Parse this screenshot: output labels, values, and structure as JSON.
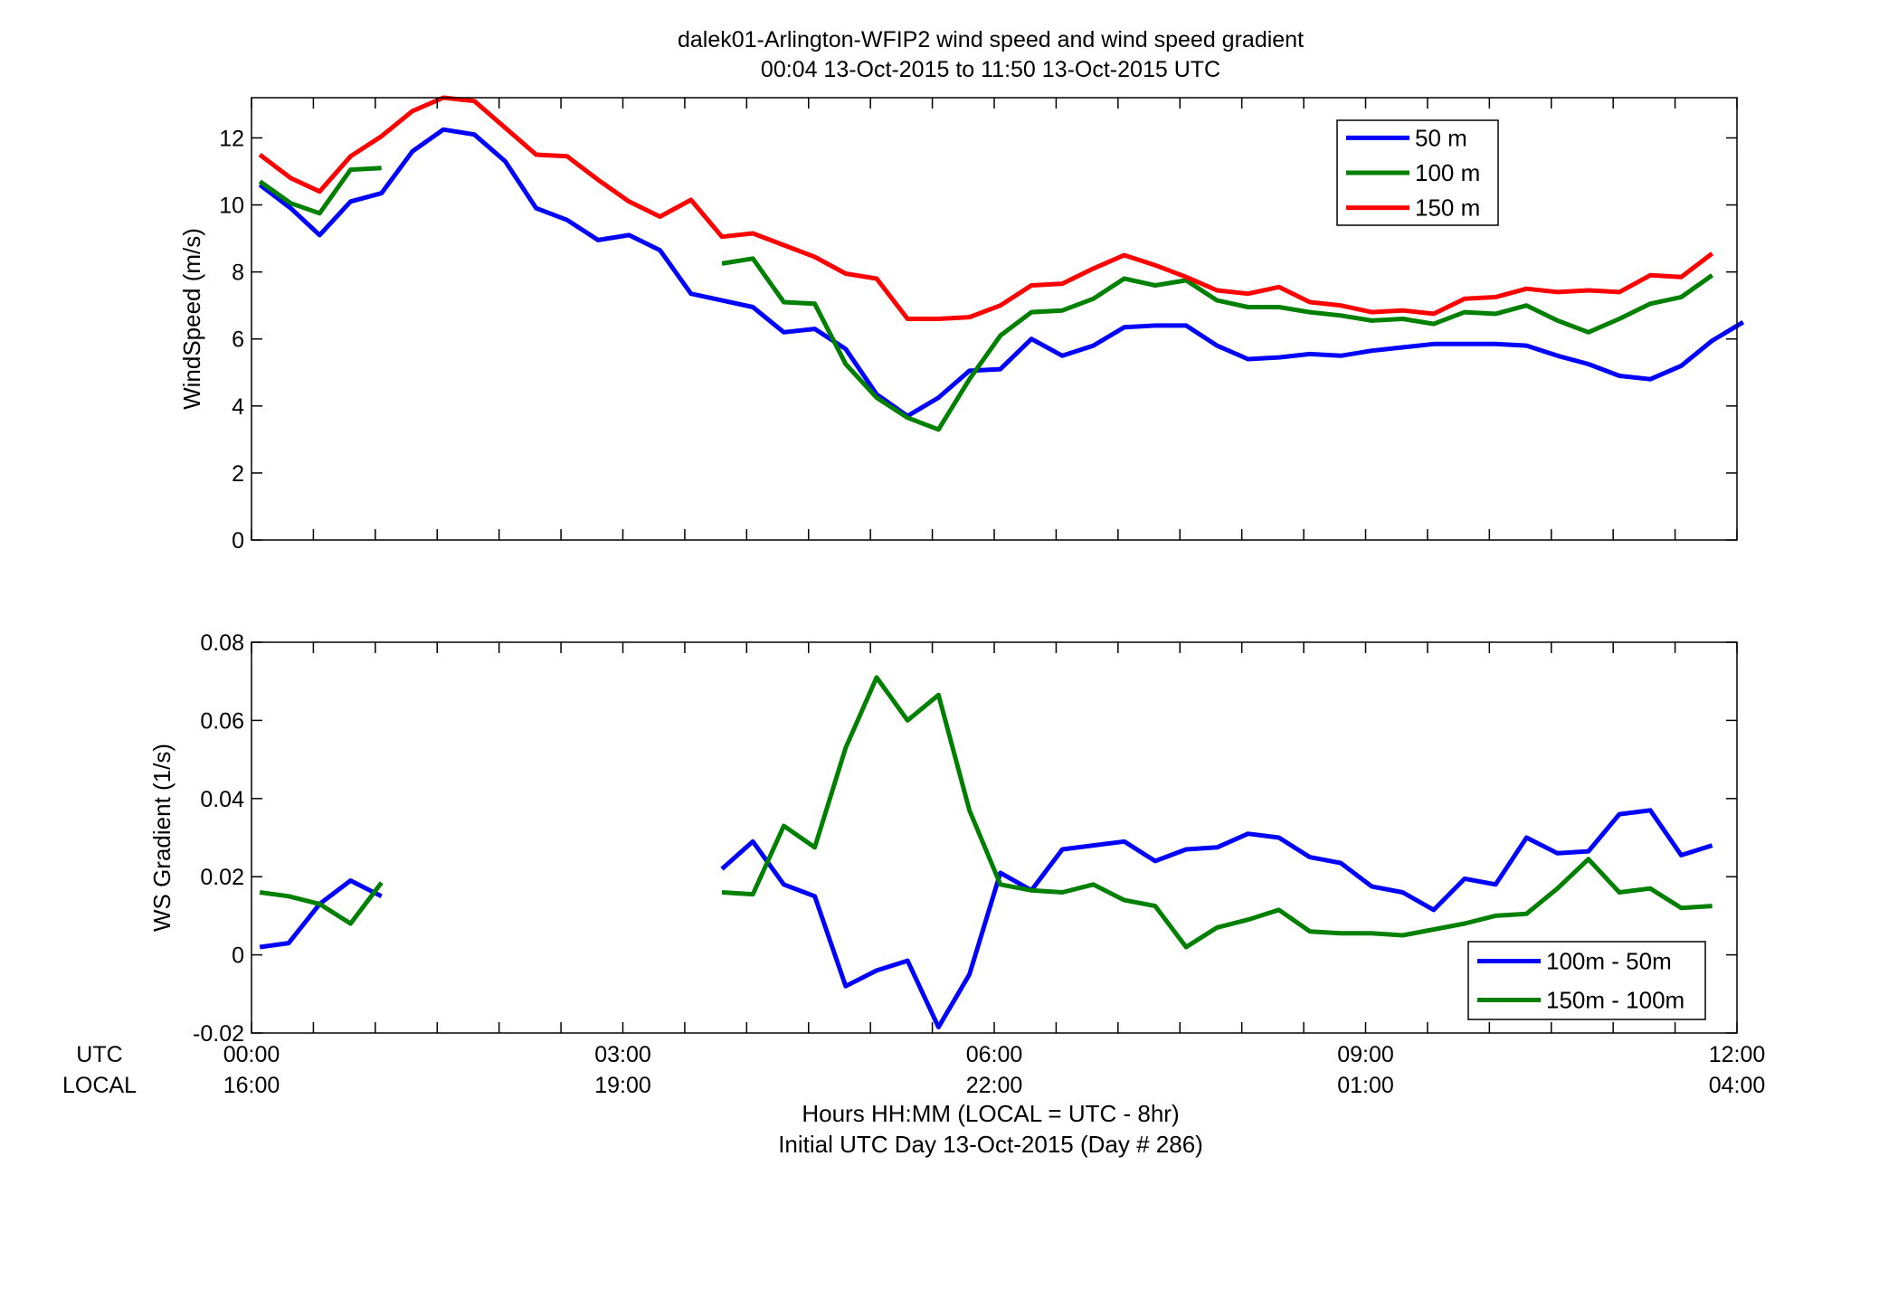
{
  "title_line1": "dalek01-Arlington-WFIP2  wind speed and wind speed gradient",
  "title_line2": "00:04 13-Oct-2015 to 11:50 13-Oct-2015  UTC",
  "xlabel_line1": "Hours HH:MM  (LOCAL = UTC - 8hr)",
  "xlabel_line2": "Initial UTC Day 13-Oct-2015 (Day # 286)",
  "row_label_utc": "UTC",
  "row_label_local": "LOCAL",
  "chart_data": [
    {
      "type": "line",
      "ylabel": "WindSpeed (m/s)",
      "xlim": [
        0,
        12
      ],
      "ylim": [
        0,
        13.2
      ],
      "yticks": [
        0,
        2,
        4,
        6,
        8,
        10,
        12
      ],
      "ytick_labels": [
        "0",
        "2",
        "4",
        "6",
        "8",
        "10",
        "12"
      ],
      "legend_position": "top-right",
      "series": [
        {
          "name": "50 m",
          "color": "#0000ff",
          "points": [
            [
              0.067,
              10.6
            ],
            [
              0.317,
              9.9
            ],
            [
              0.55,
              9.1
            ],
            [
              0.8,
              10.1
            ],
            [
              1.05,
              10.35
            ],
            [
              1.3,
              11.6
            ],
            [
              1.55,
              12.25
            ],
            [
              1.8,
              12.1
            ],
            [
              2.05,
              11.3
            ],
            [
              2.3,
              9.9
            ],
            [
              2.55,
              9.55
            ],
            [
              2.8,
              8.95
            ],
            [
              3.05,
              9.1
            ],
            [
              3.3,
              8.65
            ],
            [
              3.55,
              7.35
            ],
            [
              3.8,
              7.15
            ],
            [
              4.05,
              6.95
            ],
            [
              4.3,
              6.2
            ],
            [
              4.55,
              6.3
            ],
            [
              4.8,
              5.7
            ],
            [
              5.05,
              4.35
            ],
            [
              5.3,
              3.7
            ],
            [
              5.55,
              4.25
            ],
            [
              5.8,
              5.05
            ],
            [
              6.05,
              5.1
            ],
            [
              6.3,
              6.0
            ],
            [
              6.55,
              5.5
            ],
            [
              6.8,
              5.8
            ],
            [
              7.05,
              6.35
            ],
            [
              7.3,
              6.4
            ],
            [
              7.55,
              6.4
            ],
            [
              7.8,
              5.8
            ],
            [
              8.05,
              5.4
            ],
            [
              8.3,
              5.45
            ],
            [
              8.55,
              5.55
            ],
            [
              8.8,
              5.5
            ],
            [
              9.05,
              5.65
            ],
            [
              9.3,
              5.75
            ],
            [
              9.55,
              5.85
            ],
            [
              9.8,
              5.85
            ],
            [
              10.05,
              5.85
            ],
            [
              10.3,
              5.8
            ],
            [
              10.55,
              5.5
            ],
            [
              10.8,
              5.25
            ],
            [
              11.05,
              4.9
            ],
            [
              11.3,
              4.8
            ],
            [
              11.55,
              5.2
            ],
            [
              11.8,
              5.95
            ],
            [
              12.05,
              6.5
            ]
          ]
        },
        {
          "name": "100 m",
          "color": "#008000",
          "points": [
            [
              0.067,
              10.7
            ],
            [
              0.317,
              10.05
            ],
            [
              0.55,
              9.75
            ],
            [
              0.8,
              11.05
            ],
            [
              1.05,
              11.1
            ],
            null,
            [
              3.8,
              8.25
            ],
            [
              4.05,
              8.4
            ],
            [
              4.3,
              7.1
            ],
            [
              4.55,
              7.05
            ],
            [
              4.8,
              5.25
            ],
            [
              5.05,
              4.25
            ],
            [
              5.3,
              3.65
            ],
            [
              5.55,
              3.3
            ],
            [
              5.8,
              4.8
            ],
            [
              6.05,
              6.1
            ],
            [
              6.3,
              6.8
            ],
            [
              6.55,
              6.85
            ],
            [
              6.8,
              7.2
            ],
            [
              7.05,
              7.8
            ],
            [
              7.3,
              7.6
            ],
            [
              7.55,
              7.75
            ],
            [
              7.8,
              7.15
            ],
            [
              8.05,
              6.95
            ],
            [
              8.3,
              6.95
            ],
            [
              8.55,
              6.8
            ],
            [
              8.8,
              6.7
            ],
            [
              9.05,
              6.55
            ],
            [
              9.3,
              6.6
            ],
            [
              9.55,
              6.45
            ],
            [
              9.8,
              6.8
            ],
            [
              10.05,
              6.75
            ],
            [
              10.3,
              7.0
            ],
            [
              10.55,
              6.55
            ],
            [
              10.8,
              6.2
            ],
            [
              11.05,
              6.6
            ],
            [
              11.3,
              7.05
            ],
            [
              11.55,
              7.25
            ],
            [
              11.8,
              7.9
            ]
          ]
        },
        {
          "name": "150 m",
          "color": "#ff0000",
          "points": [
            [
              0.067,
              11.5
            ],
            [
              0.317,
              10.8
            ],
            [
              0.55,
              10.4
            ],
            [
              0.8,
              11.45
            ],
            [
              1.05,
              12.05
            ],
            [
              1.3,
              12.8
            ],
            [
              1.55,
              13.2
            ],
            [
              1.8,
              13.1
            ],
            [
              2.05,
              12.3
            ],
            [
              2.3,
              11.5
            ],
            [
              2.55,
              11.45
            ],
            [
              2.8,
              10.75
            ],
            [
              3.05,
              10.1
            ],
            [
              3.3,
              9.65
            ],
            [
              3.55,
              10.15
            ],
            [
              3.8,
              9.05
            ],
            [
              4.05,
              9.15
            ],
            [
              4.3,
              8.8
            ],
            [
              4.55,
              8.45
            ],
            [
              4.8,
              7.95
            ],
            [
              5.05,
              7.8
            ],
            [
              5.3,
              6.6
            ],
            [
              5.55,
              6.6
            ],
            [
              5.8,
              6.65
            ],
            [
              6.05,
              7.0
            ],
            [
              6.3,
              7.6
            ],
            [
              6.55,
              7.65
            ],
            [
              6.8,
              8.1
            ],
            [
              7.05,
              8.5
            ],
            [
              7.3,
              8.2
            ],
            [
              7.55,
              7.85
            ],
            [
              7.8,
              7.45
            ],
            [
              8.05,
              7.35
            ],
            [
              8.3,
              7.55
            ],
            [
              8.55,
              7.1
            ],
            [
              8.8,
              7.0
            ],
            [
              9.05,
              6.8
            ],
            [
              9.3,
              6.85
            ],
            [
              9.55,
              6.75
            ],
            [
              9.8,
              7.2
            ],
            [
              10.05,
              7.25
            ],
            [
              10.3,
              7.5
            ],
            [
              10.55,
              7.4
            ],
            [
              10.8,
              7.45
            ],
            [
              11.05,
              7.4
            ],
            [
              11.3,
              7.9
            ],
            [
              11.55,
              7.85
            ],
            [
              11.8,
              8.55
            ]
          ]
        }
      ]
    },
    {
      "type": "line",
      "ylabel": "WS Gradient (1/s)",
      "xlim": [
        0,
        12
      ],
      "ylim": [
        -0.02,
        0.08
      ],
      "yticks": [
        -0.02,
        0,
        0.02,
        0.04,
        0.06,
        0.08
      ],
      "ytick_labels": [
        "-0.02",
        "0",
        "0.02",
        "0.04",
        "0.06",
        "0.08"
      ],
      "legend_position": "bottom-right",
      "series": [
        {
          "name": "100m - 50m",
          "color": "#0000ff",
          "points": [
            [
              0.067,
              0.002
            ],
            [
              0.3,
              0.003
            ],
            [
              0.55,
              0.013
            ],
            [
              0.8,
              0.019
            ],
            [
              1.05,
              0.015
            ],
            null,
            [
              3.8,
              0.022
            ],
            [
              4.05,
              0.029
            ],
            [
              4.3,
              0.018
            ],
            [
              4.55,
              0.015
            ],
            [
              4.8,
              -0.008
            ],
            [
              5.05,
              -0.004
            ],
            [
              5.3,
              -0.0015
            ],
            [
              5.55,
              -0.0185
            ],
            [
              5.8,
              -0.005
            ],
            [
              6.05,
              0.021
            ],
            [
              6.3,
              0.0165
            ],
            [
              6.55,
              0.027
            ],
            [
              6.8,
              0.028
            ],
            [
              7.05,
              0.029
            ],
            [
              7.3,
              0.024
            ],
            [
              7.55,
              0.027
            ],
            [
              7.8,
              0.0275
            ],
            [
              8.05,
              0.031
            ],
            [
              8.3,
              0.03
            ],
            [
              8.55,
              0.025
            ],
            [
              8.8,
              0.0235
            ],
            [
              9.05,
              0.0175
            ],
            [
              9.3,
              0.016
            ],
            [
              9.55,
              0.0115
            ],
            [
              9.8,
              0.0195
            ],
            [
              10.05,
              0.018
            ],
            [
              10.3,
              0.03
            ],
            [
              10.55,
              0.026
            ],
            [
              10.8,
              0.0265
            ],
            [
              11.05,
              0.036
            ],
            [
              11.3,
              0.037
            ],
            [
              11.55,
              0.0255
            ],
            [
              11.8,
              0.028
            ]
          ]
        },
        {
          "name": "150m - 100m",
          "color": "#008000",
          "points": [
            [
              0.067,
              0.016
            ],
            [
              0.3,
              0.015
            ],
            [
              0.55,
              0.013
            ],
            [
              0.8,
              0.008
            ],
            [
              1.05,
              0.0185
            ],
            null,
            [
              3.8,
              0.016
            ],
            [
              4.05,
              0.0155
            ],
            [
              4.3,
              0.033
            ],
            [
              4.55,
              0.0275
            ],
            [
              4.8,
              0.053
            ],
            [
              5.05,
              0.071
            ],
            [
              5.3,
              0.06
            ],
            [
              5.55,
              0.0665
            ],
            [
              5.8,
              0.037
            ],
            [
              6.05,
              0.018
            ],
            [
              6.3,
              0.0165
            ],
            [
              6.55,
              0.016
            ],
            [
              6.8,
              0.018
            ],
            [
              7.05,
              0.014
            ],
            [
              7.3,
              0.0125
            ],
            [
              7.55,
              0.002
            ],
            [
              7.8,
              0.007
            ],
            [
              8.05,
              0.009
            ],
            [
              8.3,
              0.0115
            ],
            [
              8.55,
              0.006
            ],
            [
              8.8,
              0.0055
            ],
            [
              9.05,
              0.0055
            ],
            [
              9.3,
              0.005
            ],
            [
              9.55,
              0.0065
            ],
            [
              9.8,
              0.008
            ],
            [
              10.05,
              0.01
            ],
            [
              10.3,
              0.0105
            ],
            [
              10.55,
              0.017
            ],
            [
              10.8,
              0.0245
            ],
            [
              11.05,
              0.016
            ],
            [
              11.3,
              0.017
            ],
            [
              11.55,
              0.012
            ],
            [
              11.8,
              0.0125
            ]
          ]
        }
      ]
    }
  ],
  "x_ticks": [
    {
      "x": 0,
      "utc": "00:00",
      "local": "16:00"
    },
    {
      "x": 3,
      "utc": "03:00",
      "local": "19:00"
    },
    {
      "x": 6,
      "utc": "06:00",
      "local": "22:00"
    },
    {
      "x": 9,
      "utc": "09:00",
      "local": "01:00"
    },
    {
      "x": 12,
      "utc": "12:00",
      "local": "04:00"
    }
  ]
}
